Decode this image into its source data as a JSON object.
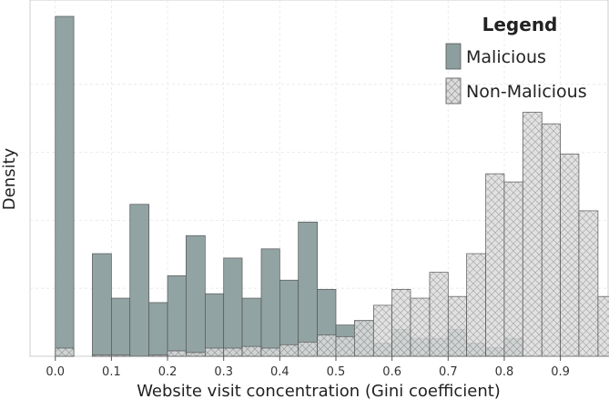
{
  "chart_data": {
    "type": "histogram",
    "xlabel": "Website visit concentration (Gini coefficient)",
    "ylabel": "Density",
    "xlim": [
      -0.045,
      0.985
    ],
    "ylim": [
      0,
      1
    ],
    "xticks": [
      "0.0",
      "0.1",
      "0.2",
      "0.3",
      "0.4",
      "0.5",
      "0.6",
      "0.7",
      "0.8",
      "0.9"
    ],
    "grid": true,
    "legend": {
      "title": "Legend",
      "position": "top-right"
    },
    "series": [
      {
        "name": "Malicious",
        "color": "#8c9e9e",
        "pattern": "solid",
        "bins": [
          {
            "x0": 0.0,
            "x1": 0.033,
            "value": 1.0
          },
          {
            "x0": 0.066,
            "x1": 0.1,
            "value": 0.302
          },
          {
            "x0": 0.1,
            "x1": 0.133,
            "value": 0.171
          },
          {
            "x0": 0.133,
            "x1": 0.167,
            "value": 0.447
          },
          {
            "x0": 0.167,
            "x1": 0.2,
            "value": 0.158
          },
          {
            "x0": 0.2,
            "x1": 0.233,
            "value": 0.237
          },
          {
            "x0": 0.233,
            "x1": 0.267,
            "value": 0.355
          },
          {
            "x0": 0.267,
            "x1": 0.3,
            "value": 0.184
          },
          {
            "x0": 0.3,
            "x1": 0.333,
            "value": 0.289
          },
          {
            "x0": 0.333,
            "x1": 0.367,
            "value": 0.171
          },
          {
            "x0": 0.367,
            "x1": 0.4,
            "value": 0.316
          },
          {
            "x0": 0.4,
            "x1": 0.433,
            "value": 0.224
          },
          {
            "x0": 0.433,
            "x1": 0.467,
            "value": 0.395
          },
          {
            "x0": 0.467,
            "x1": 0.5,
            "value": 0.197
          },
          {
            "x0": 0.5,
            "x1": 0.533,
            "value": 0.092
          },
          {
            "x0": 0.533,
            "x1": 0.567,
            "value": 0.105
          },
          {
            "x0": 0.567,
            "x1": 0.6,
            "value": 0.039
          },
          {
            "x0": 0.6,
            "x1": 0.633,
            "value": 0.079
          },
          {
            "x0": 0.633,
            "x1": 0.667,
            "value": 0.053
          },
          {
            "x0": 0.667,
            "x1": 0.7,
            "value": 0.053
          },
          {
            "x0": 0.7,
            "x1": 0.733,
            "value": 0.079
          },
          {
            "x0": 0.733,
            "x1": 0.767,
            "value": 0.039
          },
          {
            "x0": 0.767,
            "x1": 0.8,
            "value": 0.026
          },
          {
            "x0": 0.8,
            "x1": 0.833,
            "value": 0.053
          }
        ]
      },
      {
        "name": "Non-Malicious",
        "color": "#dddddd",
        "pattern": "crosshatch",
        "bins": [
          {
            "x0": 0.0,
            "x1": 0.033,
            "value": 0.024
          },
          {
            "x0": 0.066,
            "x1": 0.1,
            "value": 0.004
          },
          {
            "x0": 0.1,
            "x1": 0.133,
            "value": 0.004
          },
          {
            "x0": 0.167,
            "x1": 0.2,
            "value": 0.004
          },
          {
            "x0": 0.2,
            "x1": 0.233,
            "value": 0.016
          },
          {
            "x0": 0.233,
            "x1": 0.267,
            "value": 0.011
          },
          {
            "x0": 0.267,
            "x1": 0.3,
            "value": 0.024
          },
          {
            "x0": 0.3,
            "x1": 0.333,
            "value": 0.024
          },
          {
            "x0": 0.333,
            "x1": 0.367,
            "value": 0.029
          },
          {
            "x0": 0.367,
            "x1": 0.4,
            "value": 0.024
          },
          {
            "x0": 0.4,
            "x1": 0.433,
            "value": 0.034
          },
          {
            "x0": 0.433,
            "x1": 0.467,
            "value": 0.042
          },
          {
            "x0": 0.467,
            "x1": 0.5,
            "value": 0.063
          },
          {
            "x0": 0.5,
            "x1": 0.533,
            "value": 0.058
          },
          {
            "x0": 0.533,
            "x1": 0.567,
            "value": 0.105
          },
          {
            "x0": 0.567,
            "x1": 0.6,
            "value": 0.15
          },
          {
            "x0": 0.6,
            "x1": 0.633,
            "value": 0.197
          },
          {
            "x0": 0.633,
            "x1": 0.667,
            "value": 0.171
          },
          {
            "x0": 0.667,
            "x1": 0.7,
            "value": 0.247
          },
          {
            "x0": 0.7,
            "x1": 0.733,
            "value": 0.176
          },
          {
            "x0": 0.733,
            "x1": 0.767,
            "value": 0.302
          },
          {
            "x0": 0.767,
            "x1": 0.8,
            "value": 0.537
          },
          {
            "x0": 0.8,
            "x1": 0.833,
            "value": 0.513
          },
          {
            "x0": 0.833,
            "x1": 0.867,
            "value": 0.718
          },
          {
            "x0": 0.867,
            "x1": 0.9,
            "value": 0.684
          },
          {
            "x0": 0.9,
            "x1": 0.933,
            "value": 0.595
          },
          {
            "x0": 0.933,
            "x1": 0.967,
            "value": 0.428
          },
          {
            "x0": 0.967,
            "x1": 1.0,
            "value": 0.176
          }
        ]
      }
    ]
  }
}
